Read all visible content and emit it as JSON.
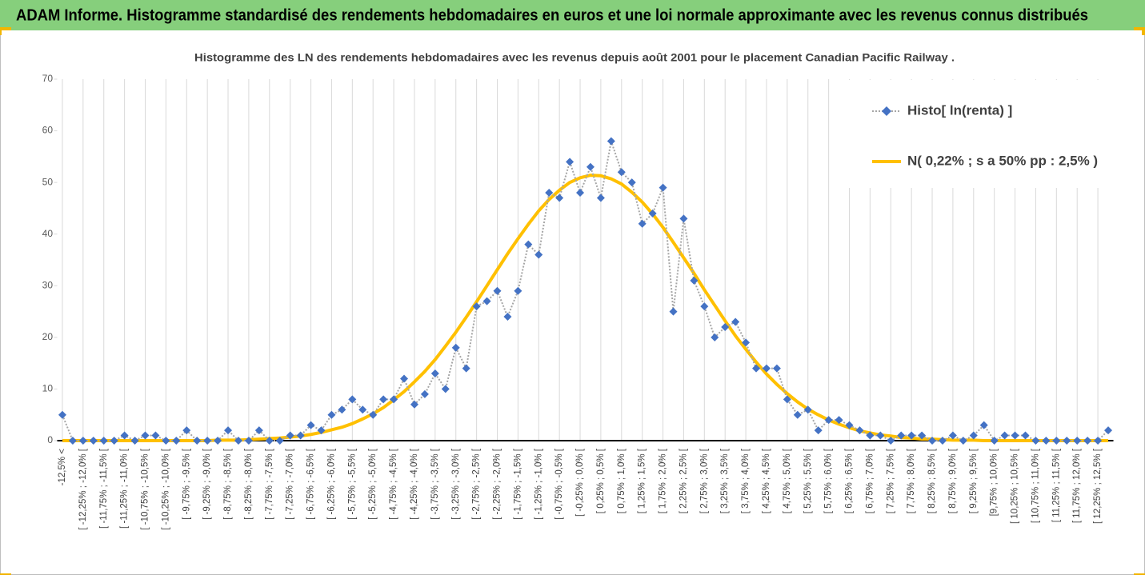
{
  "header": {
    "title": "ADAM Informe. Histogramme standardisé des rendements hebdomadaires en euros et une loi normale approximante avec les revenus connus distribués"
  },
  "chart_data": {
    "type": "line",
    "title": "Histogramme des LN des rendements hebdomadaires avec les revenus depuis août 2001 pour le placement Canadian Pacific Railway .",
    "categories": [
      "-12,5% <",
      null,
      "[ -12,25% ; -12,0% [",
      null,
      "[ -11,75% ; -11,5% [",
      null,
      "[ -11,25% ; -11,0% [",
      null,
      "[ -10,75% ; -10,5% [",
      null,
      "[ -10,25% ; -10,0% [",
      null,
      "[ -9,75% ; -9,5% [",
      null,
      "[ -9,25% ; -9,0% [",
      null,
      "[ -8,75% ; -8,5% [",
      null,
      "[ -8,25% ; -8,0% [",
      null,
      "[ -7,75% ; -7,5% [",
      null,
      "[ -7,25% ; -7,0% [",
      null,
      "[ -6,75% ; -6,5% [",
      null,
      "[ -6,25% ; -6,0% [",
      null,
      "[ -5,75% ; -5,5% [",
      null,
      "[ -5,25% ; -5,0% [",
      null,
      "[ -4,75% ; -4,5% [",
      null,
      "[ -4,25% ; -4,0% [",
      null,
      "[ -3,75% ; -3,5% [",
      null,
      "[ -3,25% ; -3,0% [",
      null,
      "[ -2,75% ; -2,5% [",
      null,
      "[ -2,25% ; -2,0% [",
      null,
      "[ -1,75% ; -1,5% [",
      null,
      "[ -1,25% ; -1,0% [",
      null,
      "[ -0,75% ; -0,5% [",
      null,
      "[ -0,25% ; 0,0% [",
      null,
      "[ 0,25% ; 0,5% [",
      null,
      "[ 0,75% ; 1,0% [",
      null,
      "[ 1,25% ; 1,5% [",
      null,
      "[ 1,75% ; 2,0% [",
      null,
      "[ 2,25% ; 2,5% [",
      null,
      "[ 2,75% ; 3,0% [",
      null,
      "[ 3,25% ; 3,5% [",
      null,
      "[ 3,75% ; 4,0% [",
      null,
      "[ 4,25% ; 4,5% [",
      null,
      "[ 4,75% ; 5,0% [",
      null,
      "[ 5,25% ; 5,5% [",
      null,
      "[ 5,75% ; 6,0% [",
      null,
      "[ 6,25% ; 6,5% [",
      null,
      "[ 6,75% ; 7,0% [",
      null,
      "[ 7,25% ; 7,5% [",
      null,
      "[ 7,75% ; 8,0% [",
      null,
      "[ 8,25% ; 8,5% [",
      null,
      "[ 8,75% ; 9,0% [",
      null,
      "[ 9,25% ; 9,5% [",
      null,
      "[9,75% ; 10,0% [",
      null,
      "[ 10,25% ; 10,5% [",
      null,
      "[ 10,75% ; 11,0% [",
      null,
      "[ 11,25% ; 11,5% [",
      null,
      "[ 11,75% ; 12,0% [",
      null,
      "[ 12,25% ; 12,5% [",
      null
    ],
    "series": [
      {
        "name": "Histo[ ln(renta) ]",
        "color": "#4472c4",
        "line_color": "#a6a6a6",
        "marker": "diamond",
        "dash": "dotted",
        "values": [
          5,
          0,
          0,
          0,
          0,
          0,
          1,
          0,
          1,
          1,
          0,
          0,
          2,
          0,
          0,
          0,
          2,
          0,
          0,
          2,
          0,
          0,
          1,
          1,
          3,
          2,
          5,
          6,
          8,
          6,
          5,
          8,
          8,
          12,
          7,
          9,
          13,
          10,
          18,
          14,
          26,
          27,
          29,
          24,
          29,
          38,
          36,
          48,
          47,
          54,
          48,
          53,
          47,
          58,
          52,
          50,
          42,
          44,
          49,
          25,
          43,
          31,
          26,
          20,
          22,
          23,
          19,
          14,
          14,
          14,
          8,
          5,
          6,
          2,
          4,
          4,
          3,
          2,
          1,
          1,
          0,
          1,
          1,
          1,
          0,
          0,
          1,
          0,
          1,
          3,
          0,
          1,
          1,
          1,
          0,
          0,
          0,
          0,
          0,
          0,
          0,
          2
        ]
      },
      {
        "name": "N( 0,22% ; s a 50% pp : 2,5% )",
        "color": "#ffc000",
        "line_color": "#ffc000",
        "marker": "none",
        "dash": "solid",
        "values": [
          0,
          0,
          0,
          0,
          0,
          0,
          0,
          0,
          0,
          0,
          0,
          0,
          0,
          0,
          0,
          0.1,
          0.1,
          0.1,
          0.2,
          0.3,
          0.4,
          0.5,
          0.7,
          0.9,
          1.2,
          1.6,
          2.1,
          2.6,
          3.3,
          4.2,
          5.2,
          6.4,
          7.9,
          9.5,
          11.4,
          13.4,
          15.7,
          18.3,
          21.0,
          23.9,
          26.9,
          30.0,
          33.1,
          36.2,
          39.1,
          41.9,
          44.5,
          46.7,
          48.5,
          50.0,
          50.9,
          51.4,
          51.3,
          50.7,
          49.7,
          48.1,
          46.2,
          43.9,
          41.3,
          38.4,
          35.4,
          32.4,
          29.2,
          26.2,
          23.2,
          20.3,
          17.7,
          15.2,
          12.9,
          10.9,
          9.1,
          7.5,
          6.1,
          5.0,
          4.0,
          3.2,
          2.5,
          1.9,
          1.5,
          1.1,
          0.9,
          0.6,
          0.5,
          0.3,
          0.3,
          0.2,
          0.1,
          0.1,
          0.1,
          0,
          0,
          0,
          0,
          0,
          0,
          0,
          0,
          0,
          0,
          0,
          0,
          0
        ]
      }
    ],
    "ylim": [
      0,
      70
    ],
    "yticks": [
      0,
      10,
      20,
      30,
      40,
      50,
      60,
      70
    ],
    "grid": "vertical",
    "legend": "top-right"
  }
}
